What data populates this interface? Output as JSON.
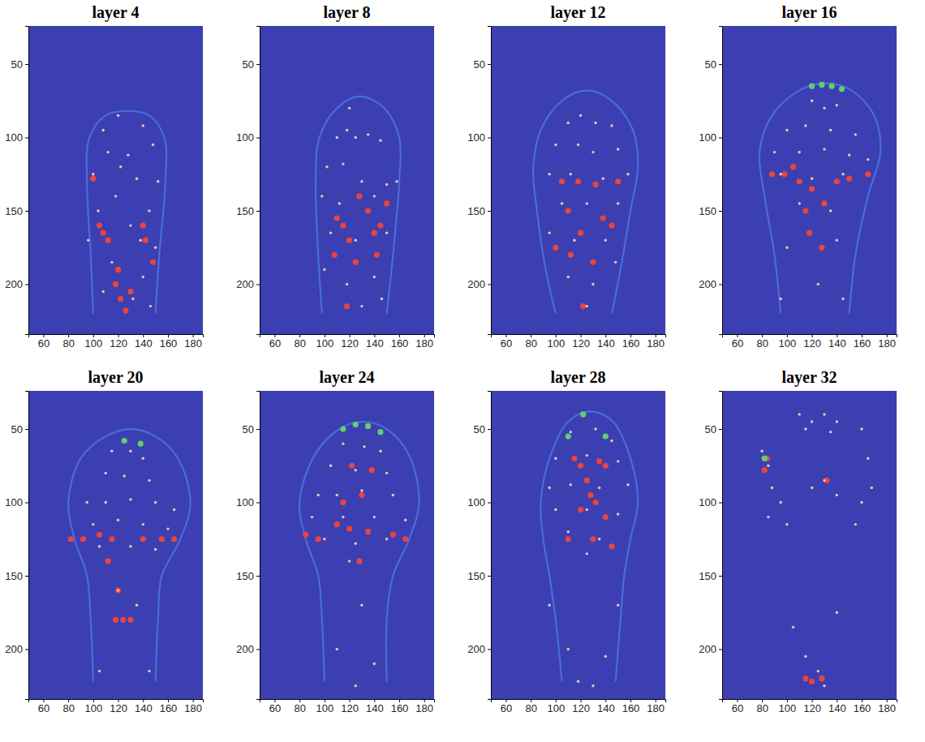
{
  "chart_data": [
    {
      "type": "scatter",
      "title": "layer 4",
      "xlim": [
        48,
        188
      ],
      "ylim": [
        234,
        24
      ],
      "xticks": [
        60,
        80,
        100,
        120,
        140,
        160,
        180
      ],
      "yticks": [
        50,
        100,
        150,
        200
      ],
      "series": [
        {
          "type": "line",
          "color": "#4d74e0",
          "x": [
            100,
            98,
            95,
            97,
            110,
            127,
            145,
            157,
            158,
            153,
            150
          ],
          "values": [
            220,
            180,
            130,
            100,
            85,
            82,
            85,
            100,
            130,
            180,
            220
          ]
        },
        {
          "color": "#e8453c",
          "marker": "blob",
          "x": [
            105,
            108,
            112,
            140,
            142,
            118,
            122,
            126,
            130,
            120,
            100,
            148
          ],
          "values": [
            160,
            165,
            170,
            160,
            170,
            200,
            210,
            218,
            205,
            190,
            128,
            185
          ]
        },
        {
          "color": "#f6c2b8",
          "marker": "dot",
          "x": [
            120,
            108,
            140,
            112,
            128,
            148,
            100,
            135,
            152,
            118,
            104,
            145,
            130,
            96,
            150,
            115,
            140,
            108,
            132,
            146,
            122,
            138
          ],
          "values": [
            85,
            95,
            92,
            110,
            112,
            105,
            125,
            128,
            130,
            140,
            150,
            150,
            160,
            170,
            175,
            185,
            195,
            205,
            210,
            215,
            120,
            170
          ]
        }
      ]
    },
    {
      "type": "scatter",
      "title": "layer 8",
      "xlim": [
        48,
        188
      ],
      "ylim": [
        234,
        24
      ],
      "xticks": [
        60,
        80,
        100,
        120,
        140,
        160,
        180
      ],
      "yticks": [
        50,
        100,
        150,
        200
      ],
      "series": [
        {
          "type": "line",
          "color": "#4d74e0",
          "x": [
            98,
            95,
            93,
            96,
            110,
            128,
            148,
            160,
            160,
            155,
            150
          ],
          "values": [
            220,
            180,
            130,
            100,
            80,
            72,
            80,
            100,
            130,
            180,
            220
          ]
        },
        {
          "color": "#e8453c",
          "marker": "blob",
          "x": [
            110,
            115,
            120,
            140,
            145,
            142,
            108,
            125,
            118,
            128,
            150,
            135
          ],
          "values": [
            155,
            160,
            170,
            165,
            160,
            180,
            180,
            185,
            215,
            140,
            145,
            150
          ]
        },
        {
          "color": "#f6c2b8",
          "marker": "dot",
          "x": [
            110,
            118,
            125,
            135,
            145,
            102,
            115,
            130,
            150,
            158,
            98,
            112,
            140,
            105,
            125,
            150,
            100,
            118,
            140,
            130,
            146,
            120
          ],
          "values": [
            100,
            95,
            100,
            98,
            102,
            120,
            118,
            130,
            132,
            130,
            140,
            145,
            140,
            165,
            170,
            165,
            190,
            200,
            195,
            215,
            210,
            80
          ]
        }
      ]
    },
    {
      "type": "scatter",
      "title": "layer 12",
      "xlim": [
        48,
        188
      ],
      "ylim": [
        234,
        24
      ],
      "xticks": [
        60,
        80,
        100,
        120,
        140,
        160,
        180
      ],
      "yticks": [
        50,
        100,
        150,
        200
      ],
      "series": [
        {
          "type": "line",
          "color": "#4d74e0",
          "x": [
            100,
            92,
            85,
            82,
            88,
            105,
            125,
            145,
            162,
            166,
            160,
            152,
            145
          ],
          "values": [
            220,
            190,
            150,
            120,
            95,
            75,
            68,
            75,
            95,
            120,
            150,
            190,
            220
          ]
        },
        {
          "color": "#e8453c",
          "marker": "blob",
          "x": [
            105,
            118,
            132,
            150,
            110,
            120,
            138,
            100,
            112,
            130,
            145,
            122
          ],
          "values": [
            130,
            130,
            132,
            130,
            150,
            165,
            155,
            175,
            180,
            185,
            160,
            215
          ]
        },
        {
          "color": "#f6c2b8",
          "marker": "dot",
          "x": [
            110,
            120,
            132,
            145,
            100,
            118,
            130,
            150,
            95,
            112,
            138,
            158,
            105,
            125,
            150,
            95,
            115,
            140,
            110,
            130,
            148,
            125
          ],
          "values": [
            90,
            85,
            90,
            92,
            105,
            105,
            110,
            108,
            125,
            125,
            128,
            125,
            145,
            145,
            145,
            165,
            170,
            170,
            195,
            200,
            185,
            215
          ]
        }
      ]
    },
    {
      "type": "scatter",
      "title": "layer 16",
      "xlim": [
        48,
        188
      ],
      "ylim": [
        234,
        24
      ],
      "xticks": [
        60,
        80,
        100,
        120,
        140,
        160,
        180
      ],
      "yticks": [
        50,
        100,
        150,
        200
      ],
      "series": [
        {
          "type": "line",
          "color": "#4d74e0",
          "x": [
            95,
            90,
            82,
            78,
            88,
            110,
            130,
            152,
            170,
            175,
            165,
            155,
            150
          ],
          "values": [
            220,
            180,
            140,
            110,
            85,
            68,
            63,
            68,
            85,
            110,
            140,
            180,
            220
          ]
        },
        {
          "color": "#e8453c",
          "marker": "blob",
          "x": [
            88,
            98,
            110,
            120,
            140,
            165,
            115,
            130,
            118,
            128,
            105,
            150
          ],
          "values": [
            125,
            125,
            130,
            135,
            130,
            125,
            150,
            145,
            165,
            175,
            120,
            128
          ]
        },
        {
          "color": "#5fd070",
          "marker": "blob",
          "x": [
            120,
            128,
            136,
            144
          ],
          "values": [
            65,
            64,
            65,
            67
          ]
        },
        {
          "color": "#f6c2b8",
          "marker": "dot",
          "x": [
            120,
            130,
            140,
            100,
            115,
            135,
            155,
            90,
            110,
            130,
            150,
            165,
            95,
            120,
            145,
            110,
            135,
            100,
            140,
            95,
            145,
            125
          ],
          "values": [
            75,
            80,
            78,
            95,
            92,
            95,
            98,
            110,
            110,
            108,
            112,
            115,
            125,
            128,
            125,
            145,
            150,
            175,
            170,
            210,
            210,
            200
          ]
        }
      ]
    },
    {
      "type": "scatter",
      "title": "layer 20",
      "xlim": [
        48,
        188
      ],
      "ylim": [
        234,
        24
      ],
      "xticks": [
        60,
        80,
        100,
        120,
        140,
        160,
        180
      ],
      "yticks": [
        50,
        100,
        150,
        200
      ],
      "series": [
        {
          "type": "line",
          "color": "#4d74e0",
          "x": [
            100,
            98,
            95,
            85,
            80,
            90,
            110,
            130,
            150,
            168,
            178,
            170,
            155,
            152,
            150
          ],
          "values": [
            222,
            180,
            150,
            125,
            100,
            70,
            55,
            50,
            55,
            70,
            100,
            125,
            150,
            180,
            222
          ]
        },
        {
          "color": "#e8453c",
          "marker": "blob",
          "x": [
            82,
            92,
            105,
            115,
            140,
            155,
            165,
            118,
            124,
            130,
            120,
            112
          ],
          "values": [
            125,
            125,
            122,
            125,
            125,
            125,
            125,
            180,
            180,
            180,
            160,
            140
          ]
        },
        {
          "color": "#5fd070",
          "marker": "blob",
          "x": [
            125,
            138
          ],
          "values": [
            58,
            60
          ]
        },
        {
          "color": "#f6c2b8",
          "marker": "dot",
          "x": [
            115,
            130,
            140,
            110,
            125,
            145,
            95,
            110,
            130,
            150,
            165,
            100,
            120,
            140,
            160,
            105,
            130,
            150,
            120,
            135,
            105,
            145
          ],
          "values": [
            65,
            65,
            70,
            80,
            82,
            85,
            100,
            100,
            98,
            100,
            105,
            115,
            112,
            115,
            118,
            130,
            130,
            132,
            160,
            170,
            215,
            215
          ]
        }
      ]
    },
    {
      "type": "scatter",
      "title": "layer 24",
      "xlim": [
        48,
        188
      ],
      "ylim": [
        234,
        24
      ],
      "xticks": [
        60,
        80,
        100,
        120,
        140,
        160,
        180
      ],
      "yticks": [
        50,
        100,
        150,
        200
      ],
      "series": [
        {
          "type": "line",
          "color": "#4d74e0",
          "x": [
            100,
            98,
            95,
            85,
            80,
            92,
            112,
            130,
            150,
            168,
            176,
            168,
            155,
            150,
            150
          ],
          "values": [
            222,
            180,
            150,
            125,
            100,
            68,
            50,
            45,
            50,
            68,
            100,
            125,
            150,
            180,
            222
          ]
        },
        {
          "color": "#e8453c",
          "marker": "blob",
          "x": [
            85,
            95,
            110,
            120,
            135,
            155,
            165,
            122,
            138,
            130,
            115,
            128
          ],
          "values": [
            122,
            125,
            115,
            118,
            120,
            122,
            125,
            75,
            78,
            95,
            100,
            140
          ]
        },
        {
          "color": "#5fd070",
          "marker": "blob",
          "x": [
            115,
            125,
            135,
            145
          ],
          "values": [
            50,
            47,
            48,
            52
          ]
        },
        {
          "color": "#f6c2b8",
          "marker": "dot",
          "x": [
            115,
            132,
            145,
            105,
            125,
            150,
            95,
            110,
            130,
            155,
            90,
            115,
            140,
            165,
            100,
            125,
            150,
            120,
            130,
            110,
            140,
            125
          ],
          "values": [
            60,
            62,
            65,
            75,
            78,
            80,
            95,
            95,
            92,
            95,
            110,
            110,
            110,
            112,
            125,
            128,
            125,
            140,
            170,
            200,
            210,
            225
          ]
        }
      ]
    },
    {
      "type": "scatter",
      "title": "layer 28",
      "xlim": [
        48,
        188
      ],
      "ylim": [
        234,
        24
      ],
      "xticks": [
        60,
        80,
        100,
        120,
        140,
        160,
        180
      ],
      "yticks": [
        50,
        100,
        150,
        200
      ],
      "series": [
        {
          "type": "line",
          "color": "#4d74e0",
          "x": [
            105,
            100,
            95,
            90,
            88,
            95,
            110,
            128,
            146,
            160,
            166,
            160,
            155,
            152,
            148
          ],
          "values": [
            222,
            180,
            150,
            125,
            100,
            70,
            45,
            38,
            45,
            70,
            100,
            125,
            150,
            180,
            222
          ]
        },
        {
          "color": "#e8453c",
          "marker": "blob",
          "x": [
            115,
            120,
            135,
            140,
            125,
            128,
            132,
            120,
            140,
            110,
            145,
            130
          ],
          "values": [
            70,
            75,
            72,
            75,
            85,
            95,
            100,
            105,
            110,
            125,
            130,
            125
          ]
        },
        {
          "color": "#5fd070",
          "marker": "blob",
          "x": [
            122,
            110,
            140
          ],
          "values": [
            40,
            55,
            55
          ]
        },
        {
          "color": "#f6c2b8",
          "marker": "dot",
          "x": [
            112,
            132,
            145,
            100,
            125,
            150,
            95,
            112,
            135,
            158,
            100,
            125,
            150,
            110,
            135,
            125,
            95,
            150,
            110,
            140,
            118,
            130
          ],
          "values": [
            52,
            50,
            58,
            70,
            68,
            72,
            90,
            88,
            90,
            88,
            105,
            105,
            108,
            120,
            125,
            135,
            170,
            170,
            200,
            205,
            222,
            225
          ]
        }
      ]
    },
    {
      "type": "scatter",
      "title": "layer 32",
      "xlim": [
        48,
        188
      ],
      "ylim": [
        234,
        24
      ],
      "xticks": [
        60,
        80,
        100,
        120,
        140,
        160,
        180
      ],
      "yticks": [
        50,
        100,
        150,
        200
      ],
      "series": [
        {
          "color": "#e8453c",
          "marker": "blob",
          "x": [
            84,
            82,
            115,
            120,
            128,
            132
          ],
          "values": [
            70,
            78,
            220,
            222,
            220,
            85
          ]
        },
        {
          "color": "#5fd070",
          "marker": "blob",
          "x": [
            82
          ],
          "values": [
            70
          ]
        },
        {
          "color": "#f6c2b8",
          "marker": "dot",
          "x": [
            110,
            120,
            130,
            140,
            115,
            135,
            80,
            85,
            88,
            95,
            85,
            100,
            160,
            165,
            168,
            160,
            155,
            130,
            120,
            140,
            115,
            125,
            130,
            105,
            140
          ],
          "values": [
            40,
            45,
            40,
            45,
            50,
            52,
            65,
            75,
            90,
            100,
            110,
            115,
            50,
            70,
            90,
            100,
            115,
            85,
            90,
            95,
            205,
            215,
            225,
            185,
            175
          ]
        }
      ]
    }
  ]
}
